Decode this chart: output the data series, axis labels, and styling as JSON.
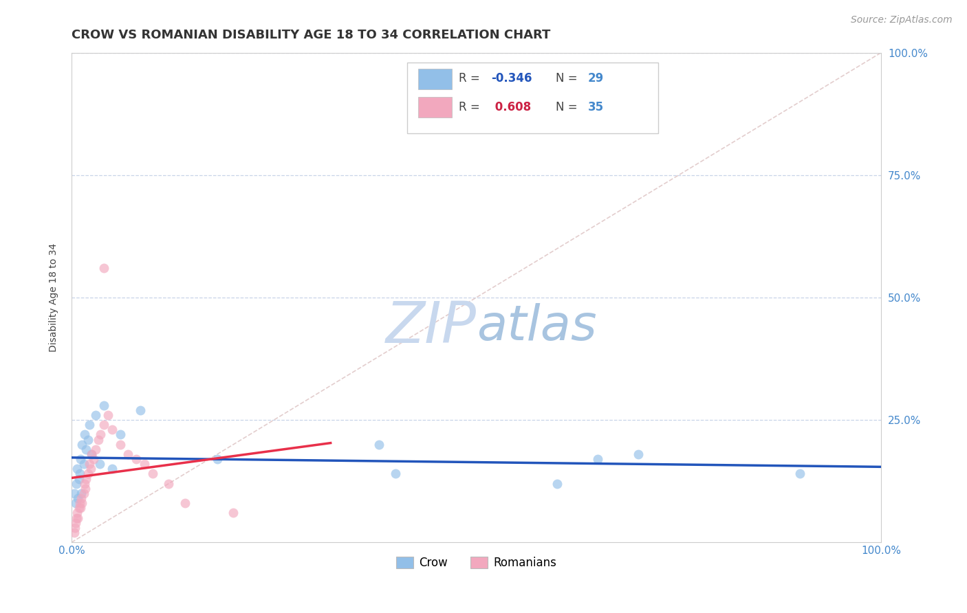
{
  "title": "CROW VS ROMANIAN DISABILITY AGE 18 TO 34 CORRELATION CHART",
  "source": "Source: ZipAtlas.com",
  "ylabel": "Disability Age 18 to 34",
  "xlim": [
    0,
    1.0
  ],
  "ylim": [
    0,
    1.0
  ],
  "crow_R": -0.346,
  "crow_N": 29,
  "romanian_R": 0.608,
  "romanian_N": 35,
  "crow_color": "#92BFE8",
  "romanian_color": "#F2A8BE",
  "crow_line_color": "#2255BB",
  "romanian_line_color": "#E8304A",
  "diag_line_color": "#E0C8C8",
  "background_color": "#FFFFFF",
  "grid_color": "#C8D4E8",
  "watermark_zip_color": "#C8D8EE",
  "watermark_atlas_color": "#A8C4E0",
  "title_color": "#333333",
  "axis_label_color": "#444444",
  "tick_label_color": "#4488CC",
  "legend_r_color_crow": "#2255BB",
  "legend_r_color_romanian": "#CC2244",
  "legend_n_color": "#4488CC",
  "crow_x": [
    0.003,
    0.005,
    0.006,
    0.007,
    0.008,
    0.009,
    0.01,
    0.011,
    0.012,
    0.013,
    0.015,
    0.016,
    0.018,
    0.02,
    0.022,
    0.025,
    0.03,
    0.035,
    0.04,
    0.05,
    0.06,
    0.085,
    0.18,
    0.38,
    0.4,
    0.6,
    0.65,
    0.7,
    0.9
  ],
  "crow_y": [
    0.1,
    0.08,
    0.12,
    0.15,
    0.09,
    0.13,
    0.14,
    0.17,
    0.1,
    0.2,
    0.16,
    0.22,
    0.19,
    0.21,
    0.24,
    0.18,
    0.26,
    0.16,
    0.28,
    0.15,
    0.22,
    0.27,
    0.17,
    0.2,
    0.14,
    0.12,
    0.17,
    0.18,
    0.14
  ],
  "romanian_x": [
    0.003,
    0.004,
    0.005,
    0.006,
    0.007,
    0.008,
    0.009,
    0.01,
    0.011,
    0.012,
    0.013,
    0.015,
    0.016,
    0.017,
    0.018,
    0.02,
    0.022,
    0.024,
    0.025,
    0.027,
    0.03,
    0.033,
    0.036,
    0.04,
    0.045,
    0.05,
    0.06,
    0.07,
    0.08,
    0.09,
    0.1,
    0.12,
    0.14,
    0.04,
    0.2
  ],
  "romanian_y": [
    0.02,
    0.03,
    0.04,
    0.05,
    0.06,
    0.05,
    0.07,
    0.08,
    0.07,
    0.09,
    0.08,
    0.1,
    0.12,
    0.11,
    0.13,
    0.14,
    0.16,
    0.15,
    0.18,
    0.17,
    0.19,
    0.21,
    0.22,
    0.24,
    0.26,
    0.23,
    0.2,
    0.18,
    0.17,
    0.16,
    0.14,
    0.12,
    0.08,
    0.56,
    0.06
  ],
  "title_fontsize": 13,
  "axis_label_fontsize": 10,
  "tick_fontsize": 11,
  "legend_fontsize": 12,
  "source_fontsize": 10,
  "watermark_fontsize": 60,
  "marker_size": 100,
  "marker_alpha": 0.65
}
